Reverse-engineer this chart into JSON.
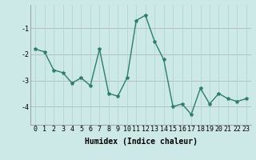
{
  "x": [
    0,
    1,
    2,
    3,
    4,
    5,
    6,
    7,
    8,
    9,
    10,
    11,
    12,
    13,
    14,
    15,
    16,
    17,
    18,
    19,
    20,
    21,
    22,
    23
  ],
  "y": [
    -1.8,
    -1.9,
    -2.6,
    -2.7,
    -3.1,
    -2.9,
    -3.2,
    -1.8,
    -3.5,
    -3.6,
    -2.9,
    -0.7,
    -0.5,
    -1.5,
    -2.2,
    -4.0,
    -3.9,
    -4.3,
    -3.3,
    -3.9,
    -3.5,
    -3.7,
    -3.8,
    -3.7
  ],
  "bg_color": "#cce9e7",
  "line_color": "#2e7d6e",
  "marker": "*",
  "xlabel": "Humidex (Indice chaleur)",
  "ylim": [
    -4.7,
    -0.1
  ],
  "xlim": [
    -0.5,
    23.5
  ],
  "yticks": [
    -4,
    -3,
    -2,
    -1
  ],
  "xticks": [
    0,
    1,
    2,
    3,
    4,
    5,
    6,
    7,
    8,
    9,
    10,
    11,
    12,
    13,
    14,
    15,
    16,
    17,
    18,
    19,
    20,
    21,
    22,
    23
  ],
  "grid_color": "#aad4d0",
  "red_line_color": "#cc8888",
  "xlabel_fontsize": 7,
  "tick_fontsize": 6,
  "line_width": 1.0,
  "marker_size": 3
}
